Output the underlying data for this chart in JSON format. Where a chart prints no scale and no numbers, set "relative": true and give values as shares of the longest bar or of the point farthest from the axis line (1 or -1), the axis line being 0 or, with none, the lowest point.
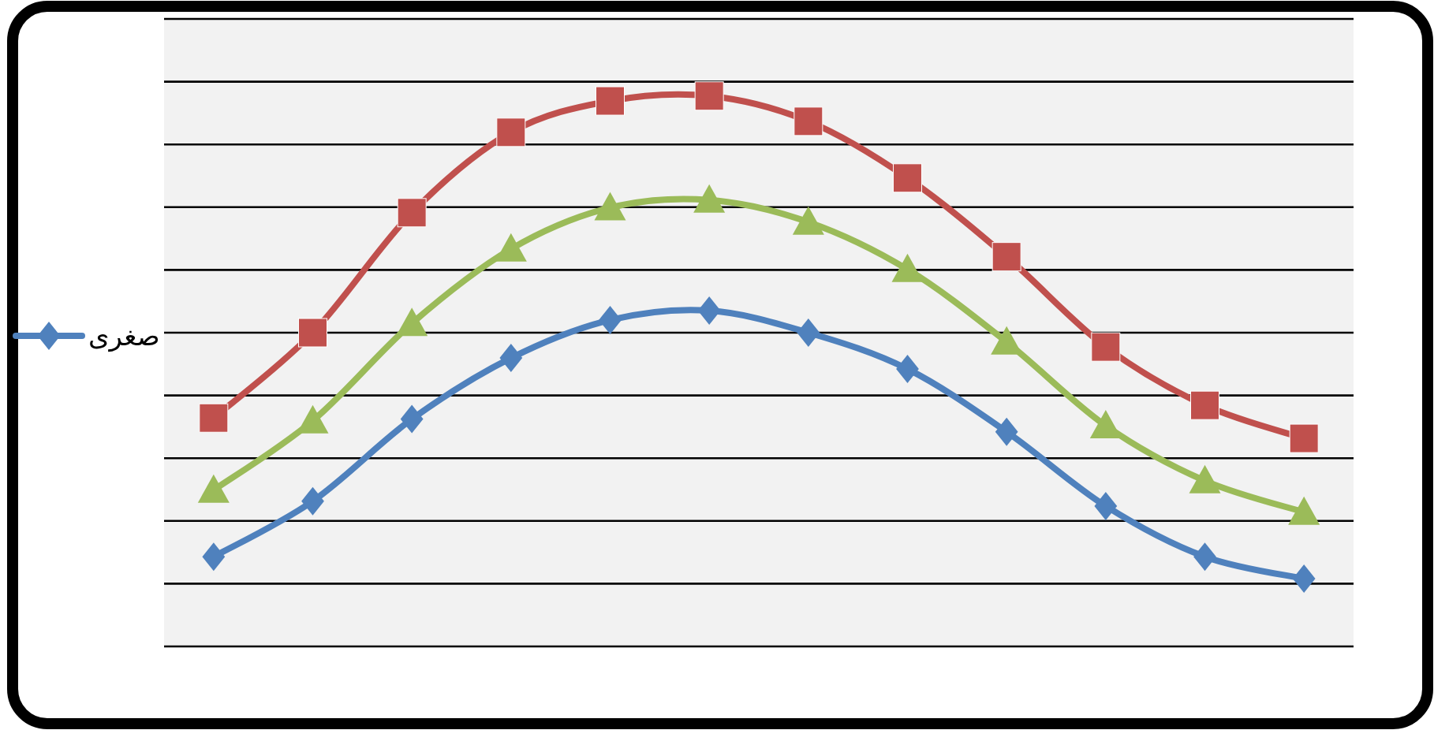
{
  "chart_data": {
    "type": "line",
    "relative": true,
    "grid": "y",
    "legend": "left",
    "line_style": "solid",
    "categories": [
      null,
      null,
      null,
      null,
      null,
      null,
      null,
      null,
      null,
      null,
      null,
      null
    ],
    "series": [
      {
        "name": "صغرى",
        "color": "#4f81bd",
        "marker": "diamond",
        "values": [
          0.163,
          0.264,
          0.413,
          0.524,
          0.593,
          0.61,
          0.57,
          0.504,
          0.39,
          0.255,
          0.163,
          0.123
        ]
      },
      {
        "color": "#c0504d",
        "marker": "square",
        "values": [
          0.415,
          0.57,
          0.788,
          0.934,
          0.991,
          1,
          0.954,
          0.851,
          0.708,
          0.544,
          0.438,
          0.378
        ]
      },
      {
        "color": "#9bbb59",
        "marker": "triangle",
        "values": [
          0.284,
          0.41,
          0.587,
          0.722,
          0.797,
          0.811,
          0.771,
          0.685,
          0.553,
          0.401,
          0.301,
          0.244
        ]
      }
    ]
  }
}
